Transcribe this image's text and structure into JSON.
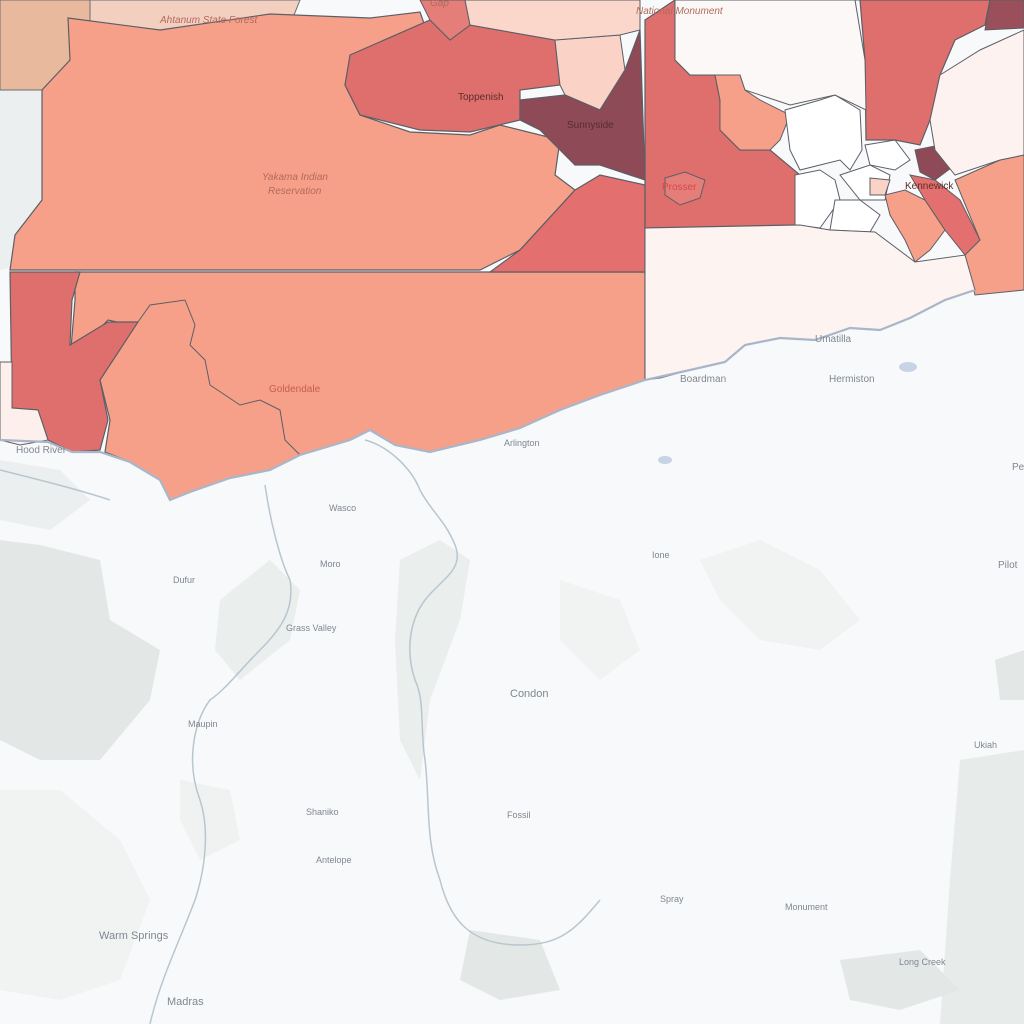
{
  "map": {
    "kind": "choropleth",
    "colors": {
      "background": "#f7f8f9",
      "terrain": "#e3e8e6",
      "water": "#c7d3e6",
      "boundary": "#5b5f66",
      "tint_lightest": "#fdf0ec",
      "tint_light": "#f8c8bd",
      "tint_mid": "#f6a28b",
      "tint_dark": "#e1706e",
      "tint_darkest": "#8c4a55",
      "land_tan": "#eab8a0"
    }
  },
  "labels": {
    "ahtanum": "Ahtanum State Forest",
    "gap": "Gap",
    "national_monument": "National Monument",
    "toppenish": "Toppenish",
    "sunnyside": "Sunnyside",
    "yakama_1": "Yakama Indian",
    "yakama_2": "Reservation",
    "prosser": "Prosser",
    "kennewick": "Kennewick",
    "goldendale": "Goldendale",
    "hood_river": "Hood River",
    "umatilla": "Umatilla",
    "hermiston": "Hermiston",
    "boardman": "Boardman",
    "arlington": "Arlington",
    "pe": "Pe",
    "wasco": "Wasco",
    "moro": "Moro",
    "dufur": "Dufur",
    "ione": "Ione",
    "pilot": "Pilot",
    "grass_valley": "Grass Valley",
    "condon": "Condon",
    "maupin": "Maupin",
    "ukiah": "Ukiah",
    "shaniko": "Shaniko",
    "fossil": "Fossil",
    "antelope": "Antelope",
    "spray": "Spray",
    "monument": "Monument",
    "warm_springs": "Warm Springs",
    "long_creek": "Long Creek",
    "madras": "Madras"
  }
}
